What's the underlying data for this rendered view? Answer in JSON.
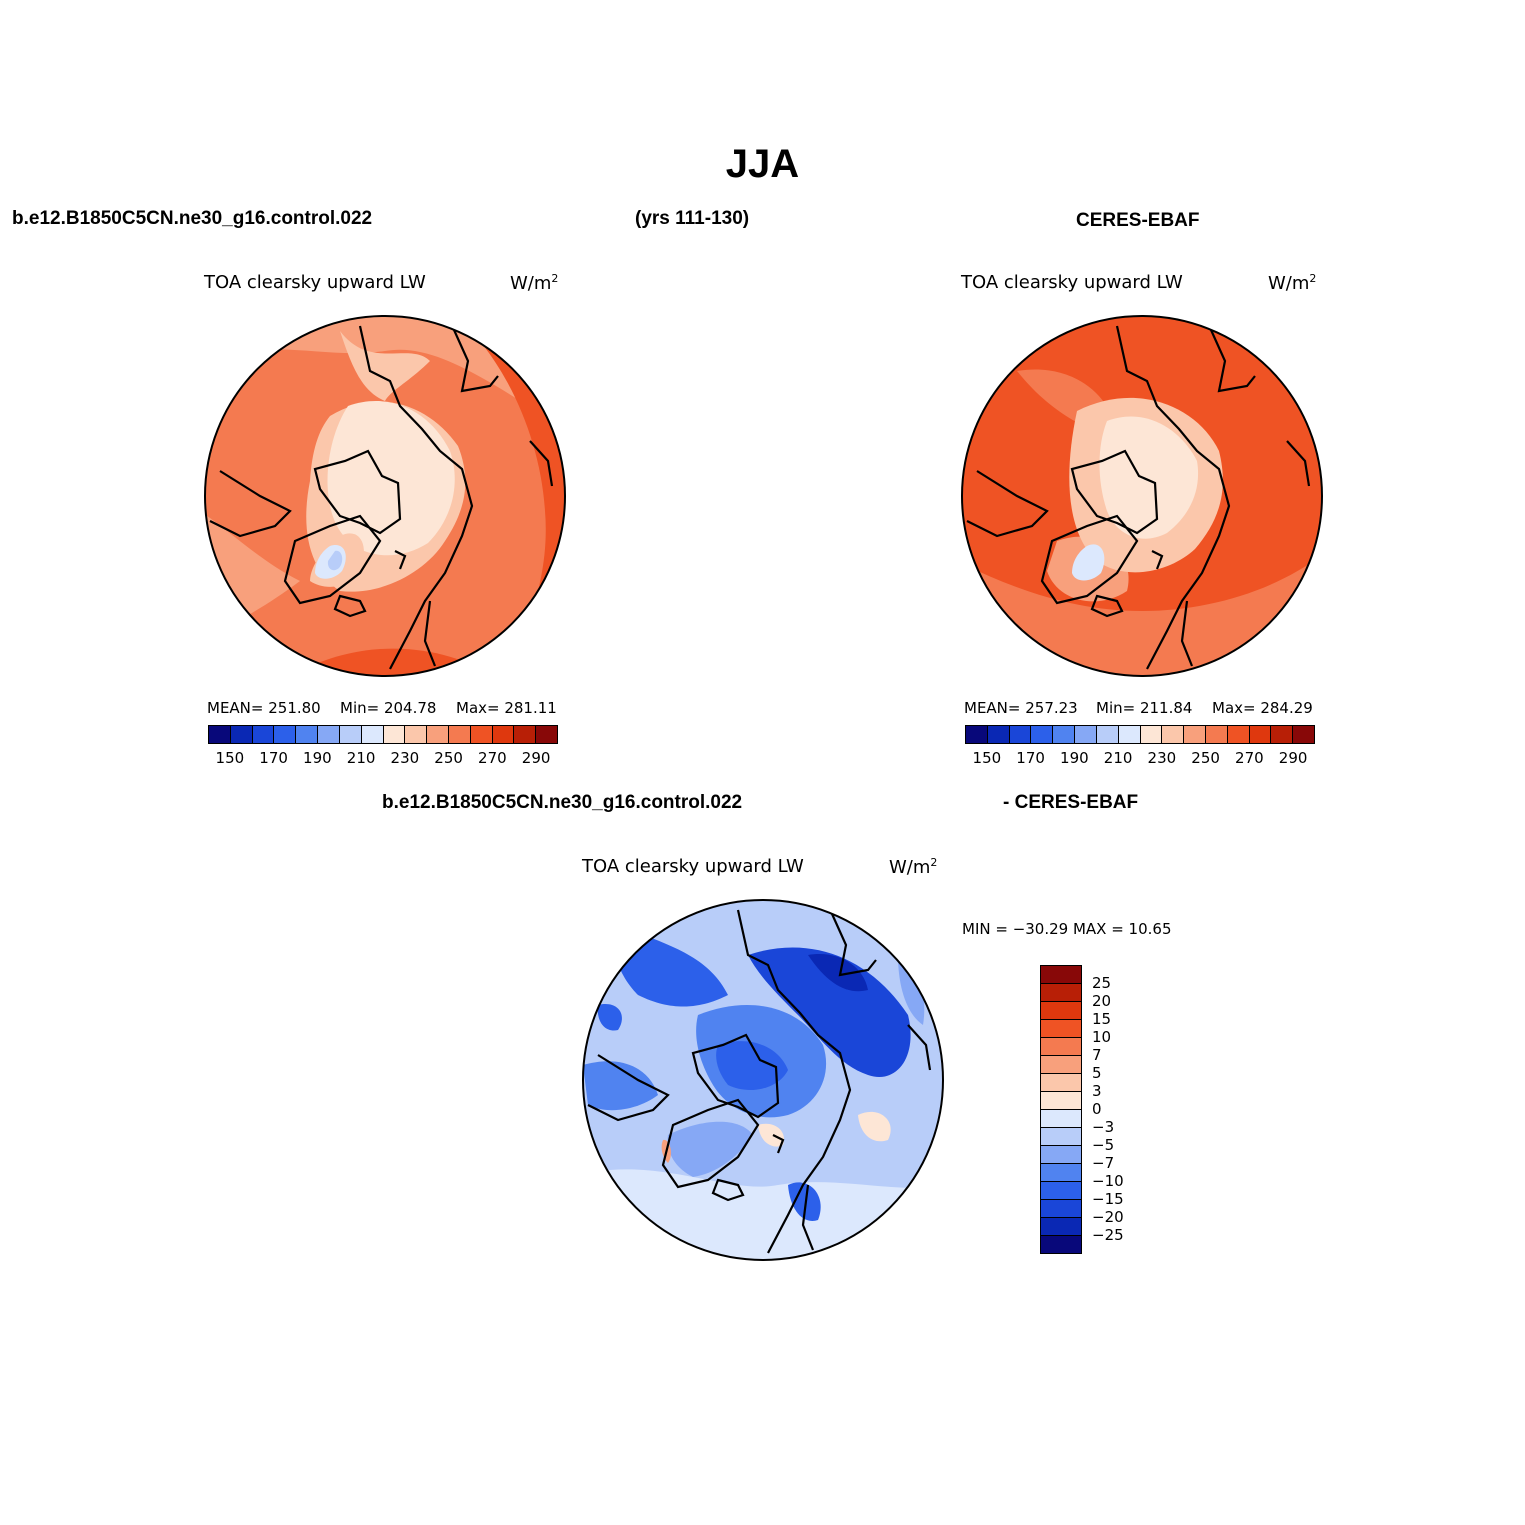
{
  "title": "JJA",
  "header": {
    "left": "b.e12.B1850C5CN.ne30_g16.control.022",
    "center": "(yrs 111-130)",
    "right": "CERES-EBAF"
  },
  "panels": {
    "model": {
      "title": "TOA clearsky upward LW",
      "units": "W/m",
      "units_sup": "2",
      "mean": "MEAN= 251.80",
      "min": "Min= 204.78",
      "max": "Max= 281.11"
    },
    "obs": {
      "title": "TOA clearsky upward LW",
      "units": "W/m",
      "units_sup": "2",
      "mean": "MEAN= 257.23",
      "min": "Min= 211.84",
      "max": "Max= 284.29"
    },
    "diff": {
      "header_left": "b.e12.B1850C5CN.ne30_g16.control.022",
      "header_right": "- CERES-EBAF",
      "title": "TOA clearsky upward LW",
      "units": "W/m",
      "units_sup": "2",
      "minmax": "MIN = −30.29 MAX =   10.65"
    }
  },
  "colorbar_abs": {
    "colors": [
      "#08087a",
      "#0a28b4",
      "#1a46d8",
      "#2c60ea",
      "#5083f0",
      "#86a8f5",
      "#b8cdf9",
      "#dce8fd",
      "#fde6d6",
      "#fbc7ab",
      "#f8a07c",
      "#f47a50",
      "#ef5324",
      "#df380e",
      "#b81f06",
      "#880808"
    ],
    "ticks": [
      "150",
      "170",
      "190",
      "210",
      "230",
      "250",
      "270",
      "290"
    ]
  },
  "colorbar_diff": {
    "colors": [
      "#880808",
      "#b81f06",
      "#df380e",
      "#ef5324",
      "#f47a50",
      "#f8a07c",
      "#fbc7ab",
      "#fde6d6",
      "#dce8fd",
      "#b8cdf9",
      "#86a8f5",
      "#5083f0",
      "#2c60ea",
      "#1a46d8",
      "#0a28b4",
      "#08087a"
    ],
    "labels": [
      "25",
      "20",
      "15",
      "10",
      "7",
      "5",
      "3",
      "0",
      "−3",
      "−5",
      "−7",
      "−10",
      "−15",
      "−20",
      "−25"
    ]
  }
}
